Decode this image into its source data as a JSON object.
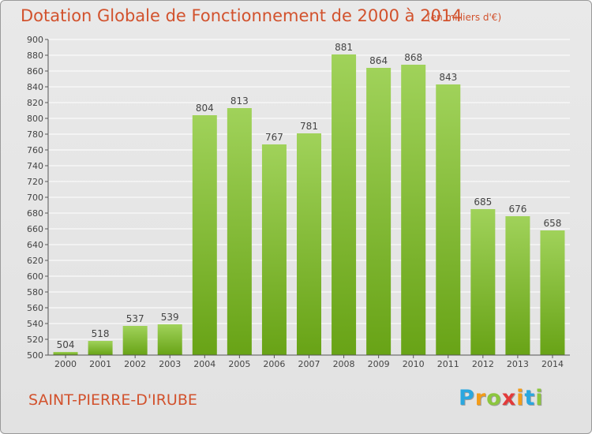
{
  "title": "Dotation Globale de Fonctionnement de 2000 à 2014",
  "subtitle": "(en milliers d'€)",
  "commune": "SAINT-PIERRE-D'IRUBE",
  "logo": {
    "letters": [
      "P",
      "r",
      "o",
      "x",
      "i",
      "t",
      "i"
    ],
    "colors": [
      "#2aa7df",
      "#f39c1a",
      "#8cc63e",
      "#e23a3a",
      "#f39c1a",
      "#2aa7df",
      "#8cc63e"
    ]
  },
  "colors": {
    "bar_top": "#a0d25a",
    "bar_bottom": "#68a316",
    "title": "#d2522d"
  },
  "chart_data": {
    "type": "bar",
    "categories": [
      "2000",
      "2001",
      "2002",
      "2003",
      "2004",
      "2005",
      "2006",
      "2007",
      "2008",
      "2009",
      "2010",
      "2011",
      "2012",
      "2013",
      "2014"
    ],
    "values": [
      504,
      518,
      537,
      539,
      804,
      813,
      767,
      781,
      881,
      864,
      868,
      843,
      685,
      676,
      658
    ],
    "ylim": [
      500,
      900
    ],
    "ytick_step": 20,
    "grid": true
  }
}
